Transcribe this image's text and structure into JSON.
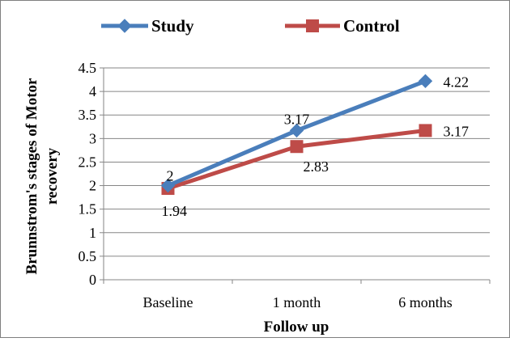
{
  "chart_data": {
    "type": "line",
    "categories": [
      "Baseline",
      "1 month",
      "6 months"
    ],
    "series": [
      {
        "name": "Study",
        "values": [
          2,
          3.17,
          4.22
        ],
        "labels": [
          "2",
          "3.17",
          "4.22"
        ],
        "color": "#4A7EBB",
        "marker": "diamond"
      },
      {
        "name": "Control",
        "values": [
          1.94,
          2.83,
          3.17
        ],
        "labels": [
          "1.94",
          "2.83",
          "3.17"
        ],
        "color": "#BE4B48",
        "marker": "square"
      }
    ],
    "xlabel": "Follow up",
    "ylabel": "Brunnstrom's stages of Motor recovery",
    "ylim": [
      0,
      4.5
    ],
    "yticks": [
      "0",
      "0.5",
      "1",
      "1.5",
      "2",
      "2.5",
      "3",
      "3.5",
      "4",
      "4.5"
    ],
    "grid": true,
    "legend_position": "top"
  }
}
